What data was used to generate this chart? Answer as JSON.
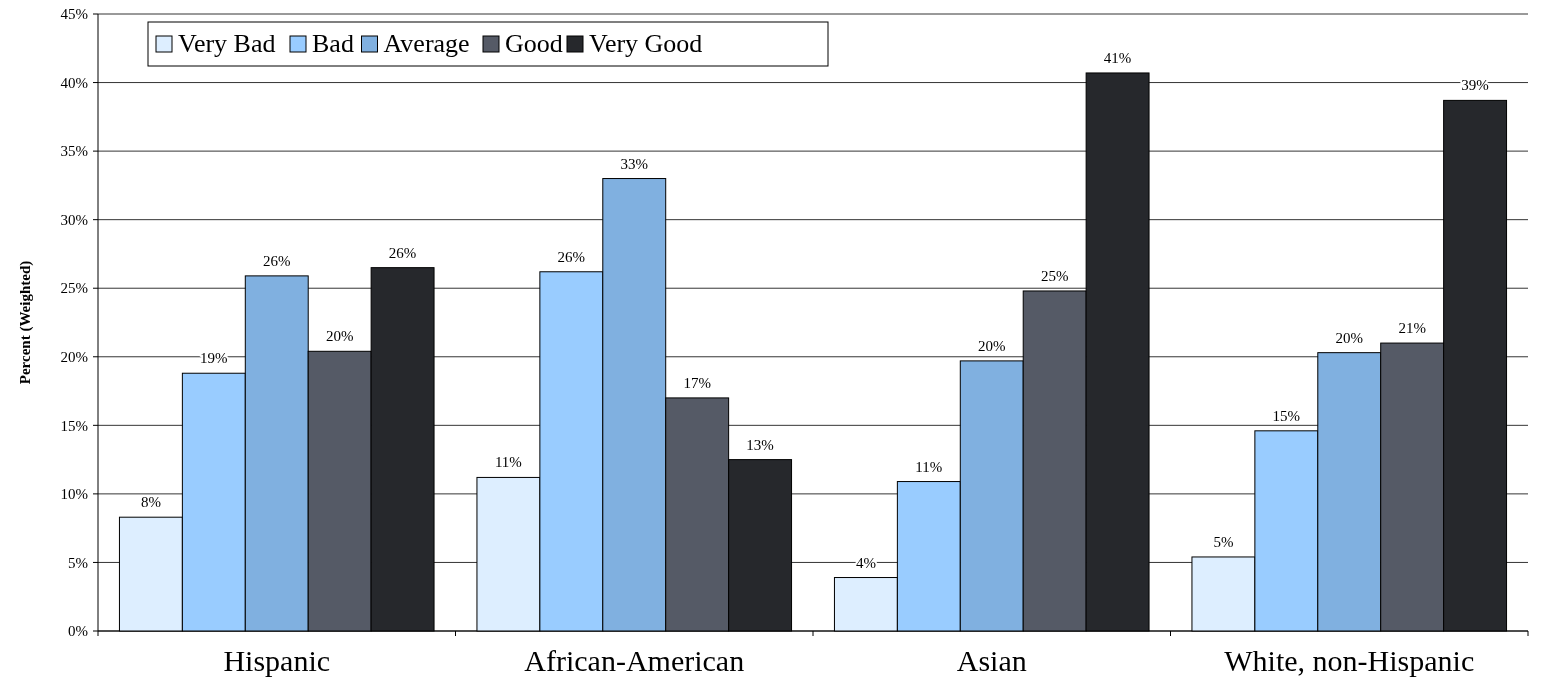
{
  "chart_data": {
    "type": "bar",
    "ylabel": "Percent (Weighted)",
    "categories": [
      "Hispanic",
      "African-American",
      "Asian",
      "White, non-Hispanic"
    ],
    "series": [
      {
        "name": "Very Bad",
        "color": "#ddeeff",
        "values": [
          8.3,
          11.2,
          3.9,
          5.4
        ],
        "value_labels": [
          "8%",
          "11%",
          "4%",
          "5%"
        ]
      },
      {
        "name": "Bad",
        "color": "#99ccff",
        "values": [
          18.8,
          26.2,
          10.9,
          14.6
        ],
        "value_labels": [
          "19%",
          "26%",
          "11%",
          "15%"
        ]
      },
      {
        "name": "Average",
        "color": "#80b0e0",
        "values": [
          25.9,
          33.0,
          19.7,
          20.3
        ],
        "value_labels": [
          "26%",
          "33%",
          "20%",
          "20%"
        ]
      },
      {
        "name": "Good",
        "color": "#555a66",
        "values": [
          20.4,
          17.0,
          24.8,
          21.0
        ],
        "value_labels": [
          "20%",
          "17%",
          "25%",
          "21%"
        ]
      },
      {
        "name": "Very Good",
        "color": "#26282c",
        "values": [
          26.5,
          12.5,
          40.7,
          38.7
        ],
        "value_labels": [
          "26%",
          "13%",
          "41%",
          "39%"
        ]
      }
    ],
    "ylim": [
      0,
      45
    ],
    "yticks": [
      {
        "value": 0,
        "label": "0%"
      },
      {
        "value": 5,
        "label": "5%"
      },
      {
        "value": 10,
        "label": "10%"
      },
      {
        "value": 15,
        "label": "15%"
      },
      {
        "value": 20,
        "label": "20%"
      },
      {
        "value": 25,
        "label": "25%"
      },
      {
        "value": 30,
        "label": "30%"
      },
      {
        "value": 35,
        "label": "35%"
      },
      {
        "value": 40,
        "label": "40%"
      },
      {
        "value": 45,
        "label": "45%"
      }
    ],
    "grid": "y",
    "legend": "top left"
  }
}
